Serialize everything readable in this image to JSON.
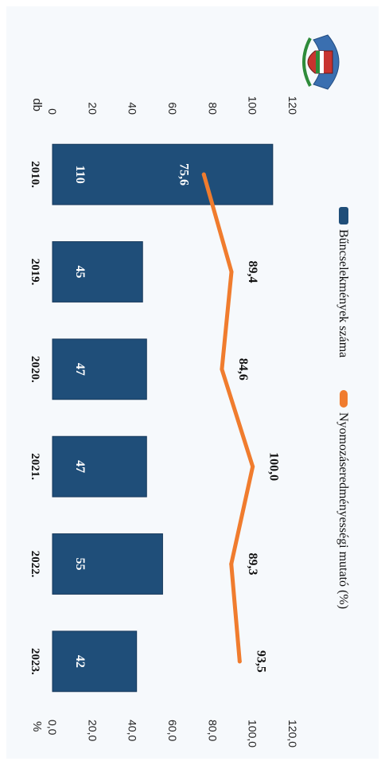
{
  "chart_data": {
    "type": "bar",
    "categories": [
      "2010.",
      "2019.",
      "2020.",
      "2021.",
      "2022.",
      "2023."
    ],
    "series": [
      {
        "name": "Bűncselekmények száma",
        "type": "bar",
        "axis": "left",
        "values": [
          110,
          45,
          47,
          47,
          55,
          42
        ],
        "labels": [
          "110",
          "45",
          "47",
          "47",
          "55",
          "42"
        ],
        "color": "#1f4e79"
      },
      {
        "name": "Nyomozáseredményességi mutató (%)",
        "type": "line",
        "axis": "right",
        "values": [
          75.6,
          89.4,
          84.6,
          100.0,
          89.3,
          93.5
        ],
        "labels": [
          "75,6",
          "89,4",
          "84,6",
          "100,0",
          "89,3",
          "93,5"
        ],
        "color": "#f07c2e"
      }
    ],
    "y_left": {
      "unit": "db",
      "range": [
        0,
        120
      ],
      "ticks": [
        "0",
        "20",
        "40",
        "60",
        "80",
        "100",
        "120"
      ]
    },
    "y_right": {
      "unit": "%",
      "range": [
        0,
        120
      ],
      "ticks": [
        "0,0",
        "20,0",
        "40,0",
        "60,0",
        "80,0",
        "100,0",
        "120,0"
      ]
    },
    "orientation": "rotated 90 degrees clockwise",
    "legend_position": "top",
    "grid": false
  }
}
